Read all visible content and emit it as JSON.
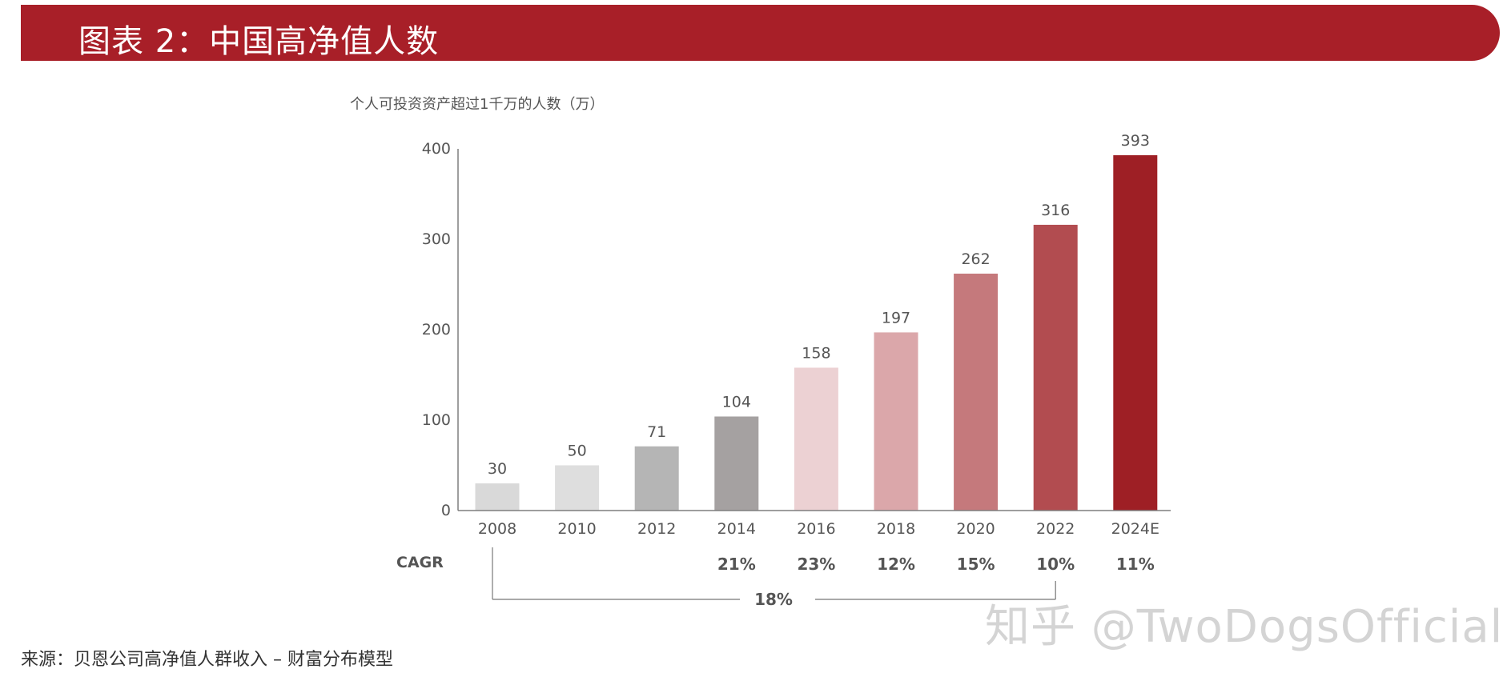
{
  "header": {
    "title": "图表 2：中国高净值人数"
  },
  "chart_data": {
    "type": "bar",
    "title": "个人可投资资产超过1千万的人数（万）",
    "categories": [
      "2008",
      "2010",
      "2012",
      "2014",
      "2016",
      "2018",
      "2020",
      "2022",
      "2024E"
    ],
    "values": [
      30,
      50,
      71,
      104,
      158,
      197,
      262,
      316,
      393
    ],
    "ylim": [
      0,
      400
    ],
    "yticks": [
      0,
      100,
      200,
      300,
      400
    ],
    "bar_colors": [
      "#d9d9d9",
      "#dedede",
      "#b5b5b5",
      "#a5a1a1",
      "#ecd1d3",
      "#dba7aa",
      "#c5797c",
      "#b24c50",
      "#9e1f25"
    ],
    "xlabel": "",
    "ylabel": "",
    "cagr": {
      "label": "CAGR",
      "values": [
        "",
        "",
        "",
        "21%",
        "23%",
        "12%",
        "15%",
        "10%",
        "11%"
      ],
      "overall": "18%",
      "overall_from": "2008",
      "overall_to": "2022"
    }
  },
  "source": {
    "text": "来源：贝恩公司高净值人群收入 – 财富分布模型"
  },
  "watermark": {
    "text": "知乎 @TwoDogsOfficial"
  }
}
